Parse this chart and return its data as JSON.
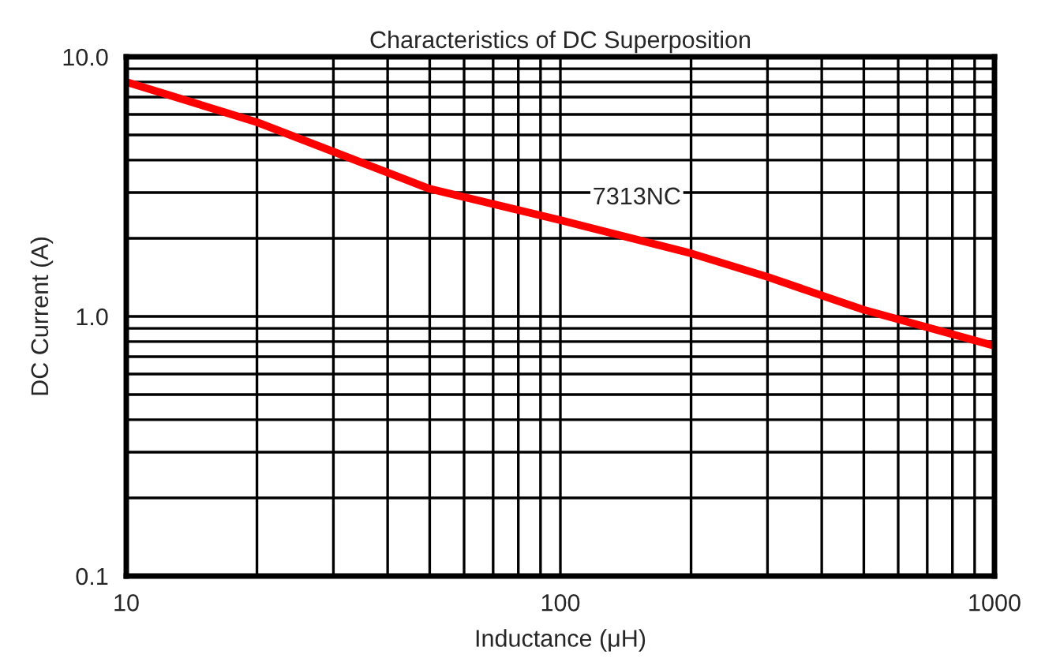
{
  "chart_data": {
    "type": "line",
    "title": "Characteristics of DC Superposition",
    "xlabel": "Inductance (μH)",
    "ylabel": "DC Current (A)",
    "log": "xy",
    "grid": true,
    "legend": false,
    "marker": "none",
    "line_style": "solid",
    "x": [
      10,
      20,
      50,
      100,
      200,
      300,
      500,
      1000
    ],
    "series": [
      {
        "name": "7313NC",
        "color": "#ff0000",
        "values": [
          8.0,
          5.6,
          3.1,
          2.35,
          1.75,
          1.42,
          1.06,
          0.77
        ]
      }
    ],
    "xlim": [
      10,
      1000
    ],
    "xticks": [
      10,
      100,
      1000
    ],
    "ylim": [
      0.1,
      10
    ],
    "yticks": [
      {
        "value": 0.1,
        "label": "0.1"
      },
      {
        "value": 1,
        "label": "1.0"
      },
      {
        "value": 10,
        "label": "10.0"
      }
    ]
  }
}
